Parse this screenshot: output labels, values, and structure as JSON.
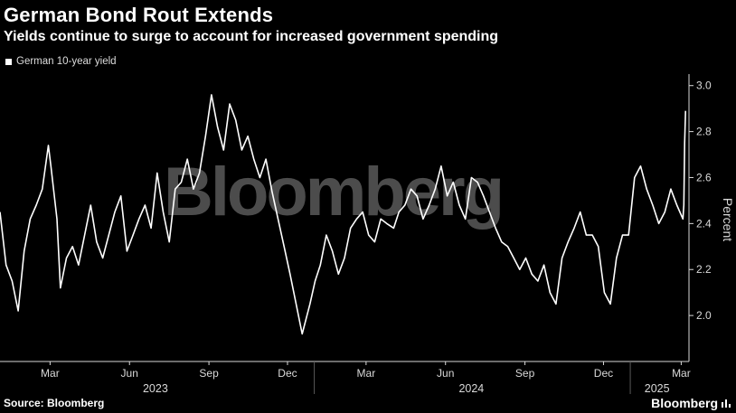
{
  "header": {
    "title": "German Bond Rout Extends",
    "subtitle": "Yields continue to surge to account for increased government spending"
  },
  "legend": {
    "label": "German 10-year yield"
  },
  "footer": {
    "source": "Source: Bloomberg",
    "brand": "Bloomberg"
  },
  "watermark": "Bloomberg",
  "colors": {
    "background": "#000000",
    "line": "#ffffff",
    "axis": "#d9d9d9"
  },
  "chart_data": {
    "type": "line",
    "ylabel": "Percent",
    "ylim": [
      1.8,
      3.05
    ],
    "yticks": [
      2.0,
      2.2,
      2.4,
      2.6,
      2.8,
      3.0
    ],
    "ytick_labels": [
      "2.0",
      "2.2",
      "2.4",
      "2.6",
      "2.8",
      "3.0"
    ],
    "xlim": [
      "2023-01-02",
      "2025-03-10"
    ],
    "xticks": [
      {
        "date": "2023-03-01",
        "label": "Mar"
      },
      {
        "date": "2023-06-01",
        "label": "Jun"
      },
      {
        "date": "2023-09-01",
        "label": "Sep"
      },
      {
        "date": "2023-12-01",
        "label": "Dec"
      },
      {
        "date": "2024-03-01",
        "label": "Mar"
      },
      {
        "date": "2024-06-01",
        "label": "Jun"
      },
      {
        "date": "2024-09-01",
        "label": "Sep"
      },
      {
        "date": "2024-12-01",
        "label": "Dec"
      },
      {
        "date": "2025-03-01",
        "label": "Mar"
      }
    ],
    "years": [
      {
        "label": "2023",
        "date": "2023-07-01",
        "boundary": "2023-01-01"
      },
      {
        "label": "2024",
        "date": "2024-07-01",
        "boundary": "2024-01-01"
      },
      {
        "label": "2025",
        "date": "2025-02-01",
        "boundary": "2025-01-01"
      }
    ],
    "series": [
      {
        "name": "German 10-year yield",
        "x": [
          "2023-01-02",
          "2023-01-09",
          "2023-01-16",
          "2023-01-23",
          "2023-01-30",
          "2023-02-06",
          "2023-02-13",
          "2023-02-20",
          "2023-02-27",
          "2023-03-02",
          "2023-03-09",
          "2023-03-13",
          "2023-03-20",
          "2023-03-27",
          "2023-04-03",
          "2023-04-10",
          "2023-04-17",
          "2023-04-24",
          "2023-05-01",
          "2023-05-08",
          "2023-05-15",
          "2023-05-22",
          "2023-05-29",
          "2023-06-05",
          "2023-06-12",
          "2023-06-19",
          "2023-06-26",
          "2023-07-03",
          "2023-07-10",
          "2023-07-17",
          "2023-07-24",
          "2023-07-31",
          "2023-08-07",
          "2023-08-14",
          "2023-08-21",
          "2023-08-28",
          "2023-09-04",
          "2023-09-11",
          "2023-09-18",
          "2023-09-25",
          "2023-10-02",
          "2023-10-09",
          "2023-10-16",
          "2023-10-23",
          "2023-10-30",
          "2023-11-06",
          "2023-11-13",
          "2023-11-20",
          "2023-11-27",
          "2023-12-04",
          "2023-12-11",
          "2023-12-18",
          "2023-12-27",
          "2024-01-02",
          "2024-01-08",
          "2024-01-15",
          "2024-01-22",
          "2024-01-29",
          "2024-02-05",
          "2024-02-12",
          "2024-02-19",
          "2024-02-26",
          "2024-03-04",
          "2024-03-11",
          "2024-03-18",
          "2024-03-25",
          "2024-04-02",
          "2024-04-08",
          "2024-04-15",
          "2024-04-22",
          "2024-04-29",
          "2024-05-06",
          "2024-05-13",
          "2024-05-20",
          "2024-05-27",
          "2024-06-03",
          "2024-06-10",
          "2024-06-17",
          "2024-06-24",
          "2024-07-01",
          "2024-07-08",
          "2024-07-15",
          "2024-07-22",
          "2024-07-29",
          "2024-08-05",
          "2024-08-12",
          "2024-08-19",
          "2024-08-26",
          "2024-09-02",
          "2024-09-09",
          "2024-09-16",
          "2024-09-23",
          "2024-09-30",
          "2024-10-07",
          "2024-10-14",
          "2024-10-21",
          "2024-10-28",
          "2024-11-04",
          "2024-11-11",
          "2024-11-18",
          "2024-11-25",
          "2024-12-02",
          "2024-12-09",
          "2024-12-16",
          "2024-12-23",
          "2024-12-30",
          "2025-01-06",
          "2025-01-13",
          "2025-01-20",
          "2025-01-27",
          "2025-02-03",
          "2025-02-10",
          "2025-02-17",
          "2025-02-24",
          "2025-03-03",
          "2025-03-04",
          "2025-03-05",
          "2025-03-06"
        ],
        "values": [
          2.45,
          2.22,
          2.15,
          2.02,
          2.28,
          2.42,
          2.48,
          2.55,
          2.74,
          2.65,
          2.42,
          2.12,
          2.25,
          2.3,
          2.22,
          2.35,
          2.48,
          2.32,
          2.25,
          2.35,
          2.45,
          2.52,
          2.28,
          2.35,
          2.42,
          2.48,
          2.38,
          2.62,
          2.45,
          2.32,
          2.55,
          2.58,
          2.68,
          2.55,
          2.62,
          2.78,
          2.96,
          2.82,
          2.72,
          2.92,
          2.85,
          2.72,
          2.78,
          2.68,
          2.6,
          2.68,
          2.54,
          2.42,
          2.3,
          2.18,
          2.05,
          1.92,
          2.05,
          2.15,
          2.22,
          2.35,
          2.28,
          2.18,
          2.25,
          2.38,
          2.42,
          2.45,
          2.35,
          2.32,
          2.42,
          2.4,
          2.38,
          2.45,
          2.48,
          2.55,
          2.52,
          2.42,
          2.48,
          2.55,
          2.65,
          2.52,
          2.58,
          2.48,
          2.42,
          2.6,
          2.58,
          2.52,
          2.45,
          2.38,
          2.32,
          2.3,
          2.25,
          2.2,
          2.25,
          2.18,
          2.15,
          2.22,
          2.1,
          2.05,
          2.25,
          2.32,
          2.38,
          2.45,
          2.35,
          2.35,
          2.3,
          2.1,
          2.05,
          2.25,
          2.35,
          2.35,
          2.6,
          2.65,
          2.55,
          2.48,
          2.4,
          2.45,
          2.55,
          2.48,
          2.42,
          2.48,
          2.75,
          2.89
        ]
      }
    ]
  }
}
